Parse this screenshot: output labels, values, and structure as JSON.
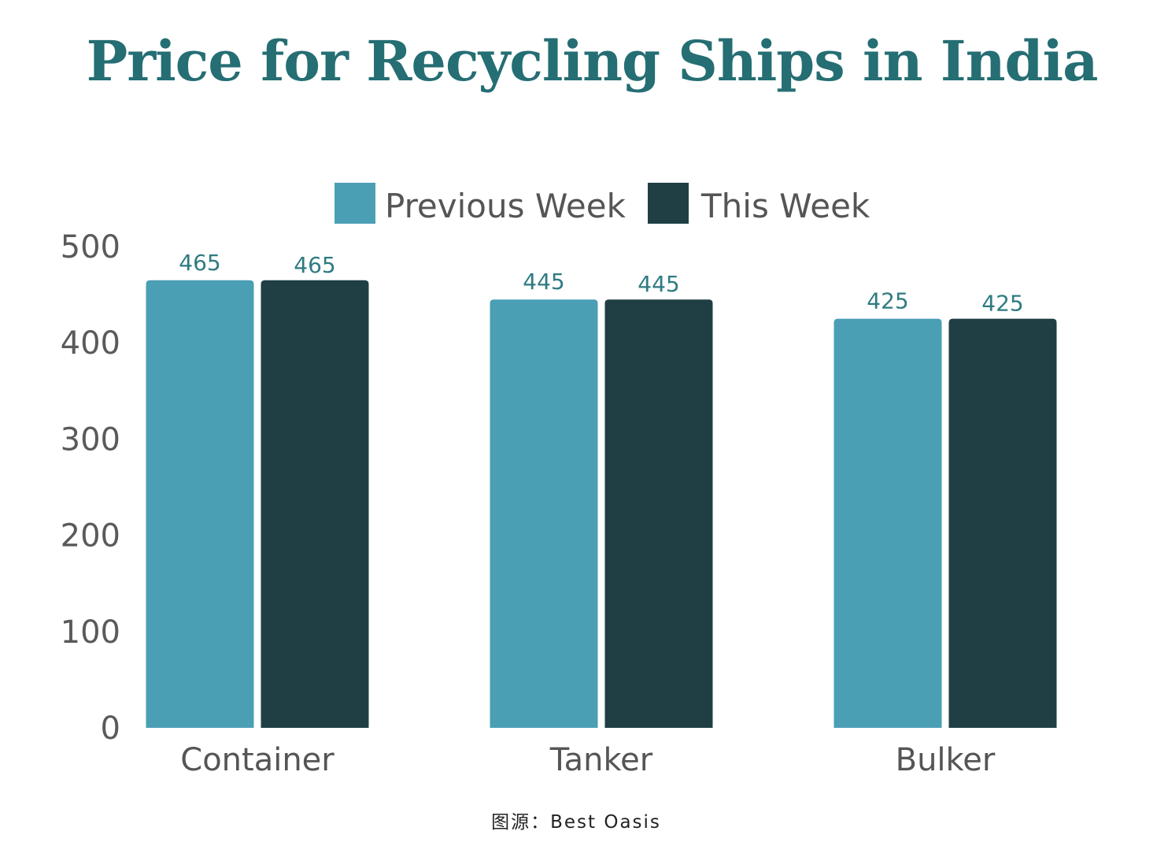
{
  "chart_data": {
    "type": "bar",
    "title": "Price for Recycling Ships in India",
    "categories": [
      "Container",
      "Tanker",
      "Bulker"
    ],
    "series": [
      {
        "name": "Previous Week",
        "values": [
          465,
          445,
          425
        ],
        "color": "#4a9fb5"
      },
      {
        "name": "This Week",
        "values": [
          465,
          445,
          425
        ],
        "color": "#1f3f44"
      }
    ],
    "yticks": [
      0,
      100,
      200,
      300,
      400,
      500
    ],
    "ylim": [
      0,
      500
    ],
    "grid": false,
    "legend_position": "top-center",
    "data_labels": true
  },
  "source": "图源：Best Oasis",
  "colors": {
    "title": "#256e73",
    "value_label": "#2f7b82",
    "text": "#555555"
  }
}
